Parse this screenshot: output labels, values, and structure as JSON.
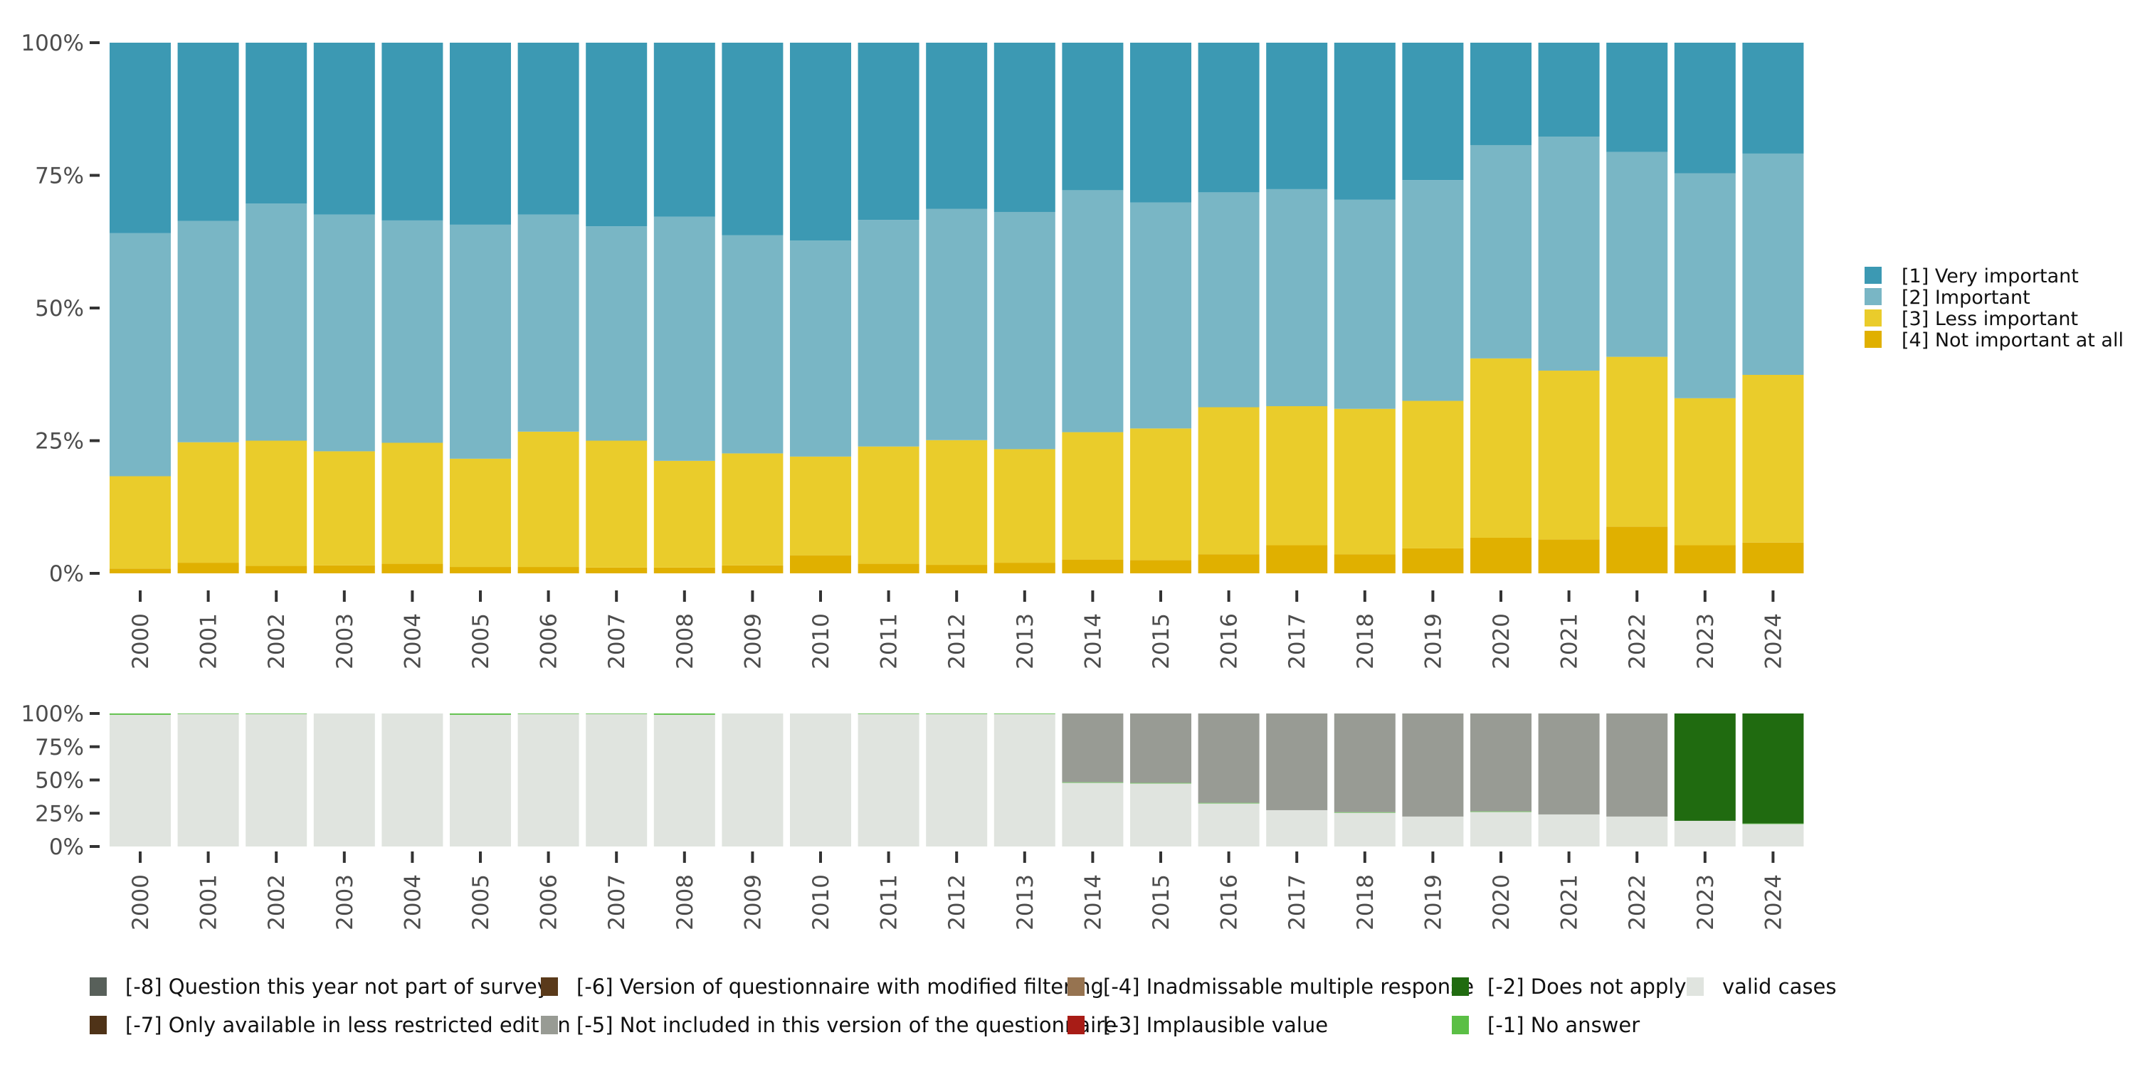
{
  "chart_data": [
    {
      "type": "bar",
      "stacked": true,
      "normalized": true,
      "title": "",
      "xlabel": "",
      "ylabel": "",
      "ylim": [
        0,
        100
      ],
      "y_ticks": [
        "0%",
        "25%",
        "50%",
        "75%",
        "100%"
      ],
      "grid": false,
      "legend_position": "right",
      "categories": [
        "2000",
        "2001",
        "2002",
        "2003",
        "2004",
        "2005",
        "2006",
        "2007",
        "2008",
        "2009",
        "2010",
        "2011",
        "2012",
        "2013",
        "2014",
        "2015",
        "2016",
        "2017",
        "2018",
        "2019",
        "2020",
        "2021",
        "2022",
        "2023",
        "2024"
      ],
      "series": [
        {
          "name": "[4] Not important at all",
          "color": "#e0b000",
          "values": [
            0.9,
            2.0,
            1.4,
            1.5,
            1.8,
            1.2,
            1.2,
            1.1,
            1.1,
            1.5,
            3.4,
            1.8,
            1.6,
            2.0,
            2.6,
            2.5,
            3.6,
            5.3,
            3.6,
            4.7,
            6.7,
            6.4,
            8.8,
            5.3,
            5.8
          ]
        },
        {
          "name": "[3] Less important",
          "color": "#eacc2b",
          "values": [
            17.4,
            22.7,
            23.6,
            21.5,
            22.8,
            20.4,
            25.5,
            23.9,
            20.1,
            21.1,
            18.6,
            22.1,
            23.5,
            21.4,
            24.0,
            24.8,
            27.7,
            26.2,
            27.4,
            27.8,
            33.8,
            31.8,
            32.0,
            27.7,
            31.6
          ]
        },
        {
          "name": "[2] Important",
          "color": "#79b6c5",
          "values": [
            45.8,
            41.7,
            44.7,
            44.6,
            41.9,
            44.1,
            40.9,
            40.4,
            46.0,
            41.1,
            40.7,
            42.7,
            43.6,
            44.7,
            45.6,
            42.6,
            40.5,
            40.9,
            39.4,
            41.6,
            40.2,
            44.1,
            38.6,
            42.4,
            41.7
          ]
        },
        {
          "name": "[1] Very important",
          "color": "#3c99b3",
          "values": [
            35.9,
            33.6,
            30.3,
            32.4,
            33.5,
            34.3,
            32.4,
            34.6,
            32.8,
            36.3,
            37.3,
            33.4,
            31.3,
            31.9,
            27.8,
            30.1,
            28.2,
            27.6,
            29.6,
            25.9,
            19.3,
            17.7,
            20.6,
            24.6,
            20.9
          ]
        }
      ],
      "legend": [
        {
          "label": "[1] Very important",
          "color": "#3c99b3"
        },
        {
          "label": "[2] Important",
          "color": "#79b6c5"
        },
        {
          "label": "[3] Less important",
          "color": "#eacc2b"
        },
        {
          "label": "[4] Not important at all",
          "color": "#e0b000"
        }
      ]
    },
    {
      "type": "bar",
      "stacked": true,
      "normalized": true,
      "title": "",
      "xlabel": "",
      "ylabel": "",
      "ylim": [
        0,
        100
      ],
      "y_ticks": [
        "0%",
        "25%",
        "50%",
        "75%",
        "100%"
      ],
      "grid": false,
      "legend_position": "bottom",
      "categories": [
        "2000",
        "2001",
        "2002",
        "2003",
        "2004",
        "2005",
        "2006",
        "2007",
        "2008",
        "2009",
        "2010",
        "2011",
        "2012",
        "2013",
        "2014",
        "2015",
        "2016",
        "2017",
        "2018",
        "2019",
        "2020",
        "2021",
        "2022",
        "2023",
        "2024"
      ],
      "series": [
        {
          "name": "valid cases",
          "color": "#e0e4df",
          "values": [
            99.0,
            99.6,
            99.6,
            100,
            100,
            99.0,
            99.6,
            99.6,
            99.0,
            100,
            100,
            99.7,
            99.7,
            99.7,
            48.0,
            47.5,
            32.5,
            27.3,
            25.5,
            22.5,
            26.1,
            24.1,
            22.5,
            19.3,
            17.0
          ]
        },
        {
          "name": "[-1] No answer",
          "color": "#5bbf45",
          "values": [
            1.0,
            0.4,
            0.4,
            0,
            0,
            1.0,
            0.4,
            0.4,
            1.0,
            0,
            0,
            0.3,
            0.3,
            0.3,
            0.3,
            0.3,
            0.3,
            0,
            0.3,
            0,
            0.3,
            0,
            0,
            0,
            0.3
          ]
        },
        {
          "name": "[-5] Not included in this version of the questionnaire",
          "color": "#989b94",
          "values": [
            0,
            0,
            0,
            0,
            0,
            0,
            0,
            0,
            0,
            0,
            0,
            0,
            0,
            0,
            51.7,
            52.2,
            67.2,
            72.7,
            74.2,
            77.5,
            73.6,
            75.9,
            77.5,
            0,
            0
          ]
        },
        {
          "name": "[-2] Does not apply",
          "color": "#206b10",
          "values": [
            0,
            0,
            0,
            0,
            0,
            0,
            0,
            0,
            0,
            0,
            0,
            0,
            0,
            0,
            0,
            0,
            0,
            0,
            0,
            0,
            0,
            0,
            0,
            80.7,
            82.7
          ]
        }
      ],
      "legend": [
        {
          "label": "[-8] Question this year not part of survey",
          "color": "#58605a"
        },
        {
          "label": "[-7] Only available in less restricted edition",
          "color": "#4f3318"
        },
        {
          "label": "[-6] Version of questionnaire with modified filtering",
          "color": "#5a3a1a"
        },
        {
          "label": "[-5] Not included in this version of the questionnaire",
          "color": "#989b94"
        },
        {
          "label": "[-4] Inadmissable multiple response",
          "color": "#967350"
        },
        {
          "label": "[-3] Implausible value",
          "color": "#a81c16"
        },
        {
          "label": "[-2] Does not apply",
          "color": "#206b10"
        },
        {
          "label": "[-1] No answer",
          "color": "#5bbf45"
        },
        {
          "label": "valid cases",
          "color": "#e0e4df"
        }
      ]
    }
  ]
}
